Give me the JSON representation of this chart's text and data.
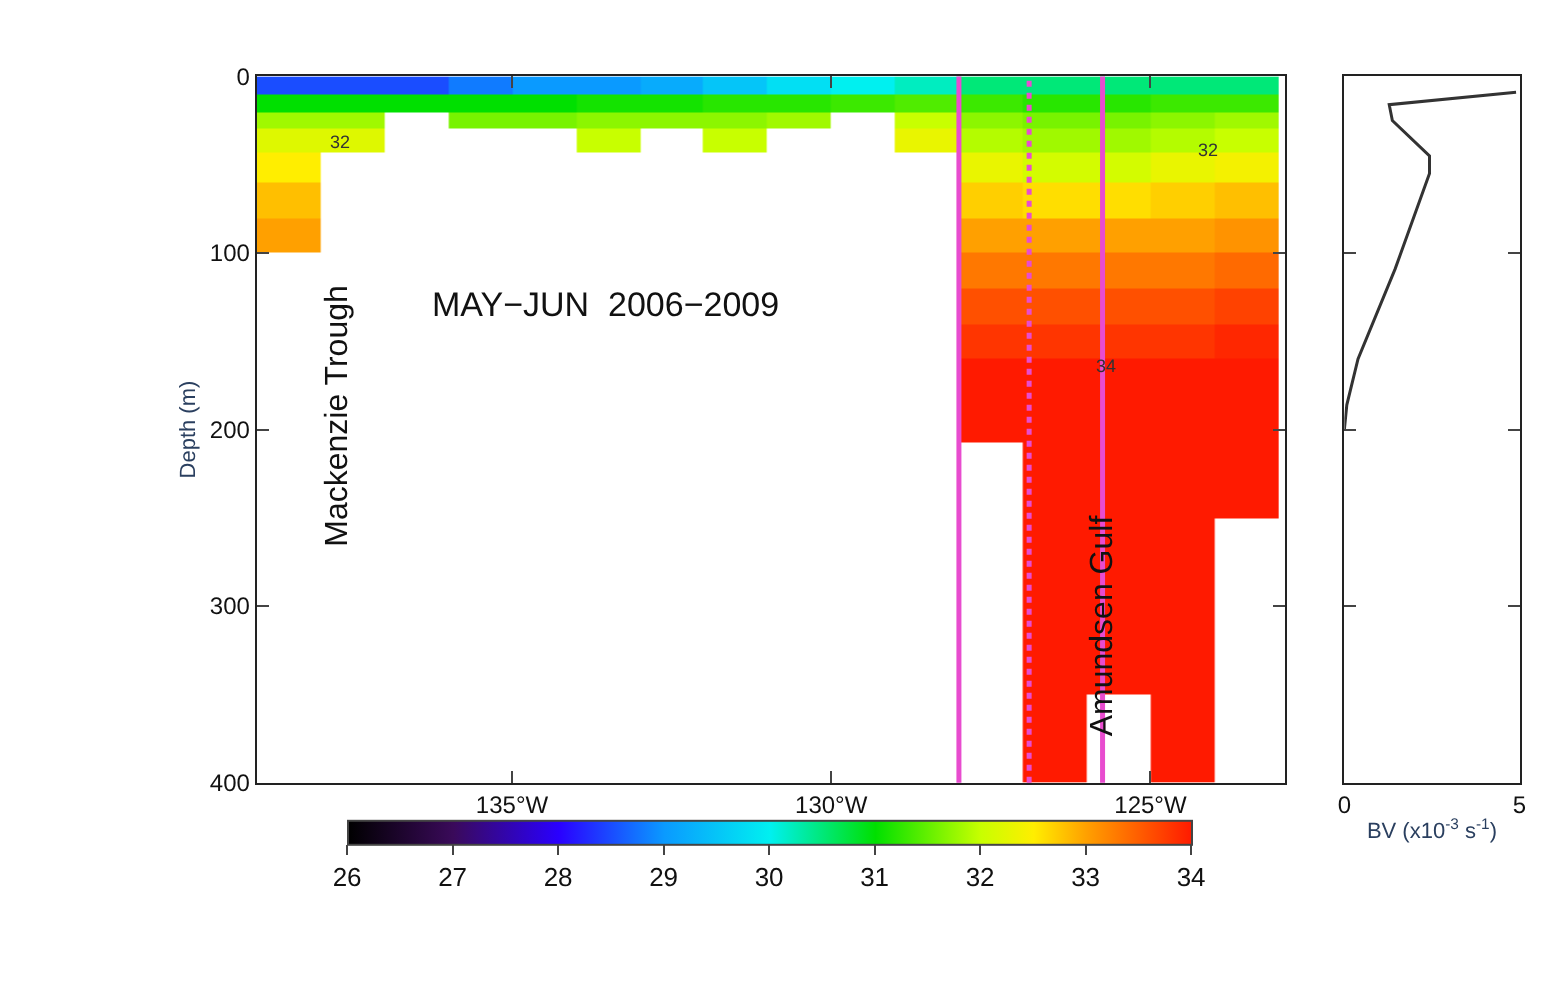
{
  "chart_data": [
    {
      "type": "heatmap",
      "title": "MAY−JUN  2006−2009",
      "ylabel": "Depth (m)",
      "x": [
        -138.5,
        -137.5,
        -136.5,
        -135.5,
        -134.5,
        -133.5,
        -132.5,
        -131.5,
        -130.5,
        -129.5,
        -128.5,
        -127.5,
        -126.5,
        -125.5,
        -124.5,
        -123.5
      ],
      "y": [
        5,
        15,
        25,
        35,
        50,
        70,
        90,
        110,
        130,
        150,
        170,
        190,
        225,
        275,
        325,
        375
      ],
      "cells": [
        [
          28.5,
          28.5,
          28.5,
          28.8,
          29,
          29,
          29.2,
          29.5,
          29.8,
          30,
          30.2,
          30.5,
          30.5,
          30.5,
          30.5,
          30.5
        ],
        [
          31,
          31,
          31,
          31,
          31,
          31.1,
          31.1,
          31.2,
          31.2,
          31.3,
          31.4,
          31.3,
          31.2,
          31.2,
          31.3,
          31.3
        ],
        [
          31.8,
          31.8,
          null,
          31.6,
          31.6,
          31.7,
          31.7,
          31.7,
          31.8,
          null,
          32,
          31.7,
          31.6,
          31.6,
          31.7,
          31.8
        ],
        [
          32.2,
          32.2,
          null,
          null,
          null,
          32,
          null,
          32,
          null,
          null,
          32.3,
          31.9,
          31.8,
          31.8,
          31.9,
          32
        ],
        [
          32.5,
          null,
          null,
          null,
          null,
          null,
          null,
          null,
          null,
          null,
          null,
          32.3,
          32.1,
          32.1,
          32.3,
          32.4
        ],
        [
          32.8,
          null,
          null,
          null,
          null,
          null,
          null,
          null,
          null,
          null,
          null,
          32.7,
          32.6,
          32.6,
          32.7,
          32.8
        ],
        [
          33,
          null,
          null,
          null,
          null,
          null,
          null,
          null,
          null,
          null,
          null,
          33,
          33,
          33,
          33,
          33.1
        ],
        [
          null,
          null,
          null,
          null,
          null,
          null,
          null,
          null,
          null,
          null,
          null,
          33.3,
          33.3,
          33.3,
          33.3,
          33.4
        ],
        [
          null,
          null,
          null,
          null,
          null,
          null,
          null,
          null,
          null,
          null,
          null,
          33.6,
          33.6,
          33.6,
          33.6,
          33.7
        ],
        [
          null,
          null,
          null,
          null,
          null,
          null,
          null,
          null,
          null,
          null,
          null,
          33.8,
          33.8,
          33.8,
          33.8,
          33.9
        ],
        [
          null,
          null,
          null,
          null,
          null,
          null,
          null,
          null,
          null,
          null,
          null,
          34,
          34,
          34,
          34,
          34
        ],
        [
          null,
          null,
          null,
          null,
          null,
          null,
          null,
          null,
          null,
          null,
          null,
          34,
          34,
          34,
          34,
          34
        ],
        [
          null,
          null,
          null,
          null,
          null,
          null,
          null,
          null,
          null,
          null,
          null,
          null,
          34,
          34,
          34,
          34
        ],
        [
          null,
          null,
          null,
          null,
          null,
          null,
          null,
          null,
          null,
          null,
          null,
          null,
          34,
          34,
          34,
          null
        ],
        [
          null,
          null,
          null,
          null,
          null,
          null,
          null,
          null,
          null,
          null,
          null,
          null,
          34,
          34,
          34,
          null
        ],
        [
          null,
          null,
          null,
          null,
          null,
          null,
          null,
          null,
          null,
          null,
          null,
          null,
          34,
          null,
          34,
          null
        ]
      ],
      "clim": [
        26,
        34
      ],
      "cticks": [
        26,
        27,
        28,
        29,
        30,
        31,
        32,
        33,
        34
      ],
      "xlim": [
        -139,
        -122.9
      ],
      "xticks": [
        {
          "value": -135,
          "label": "135°W"
        },
        {
          "value": -130,
          "label": "130°W"
        },
        {
          "value": -125,
          "label": "125°W"
        }
      ],
      "ylim": [
        400,
        0
      ],
      "yticks": [
        0,
        100,
        200,
        300,
        400
      ],
      "ref_lines": [
        {
          "axis": "x",
          "value": -128.0,
          "color": "#e84ccf",
          "line_style": "solid"
        },
        {
          "axis": "x",
          "value": -126.9,
          "color": "#e84ccf",
          "line_style": "dotted"
        },
        {
          "axis": "x",
          "value": -125.75,
          "color": "#e84ccf",
          "line_style": "solid"
        }
      ],
      "annotations": [
        "Mackenzie Trough",
        "Amundsen Gulf",
        "32",
        "32",
        "34"
      ]
    },
    {
      "type": "line",
      "xlabel": "BV (x10$^{-3}$ s$^{-1}$)",
      "series": [
        {
          "color": "#333333",
          "x": [
            4.9,
            1.28,
            1.37,
            2.43,
            2.43,
            1.45,
            0.39,
            0.07,
            0
          ],
          "values": [
            9,
            16,
            25,
            45,
            55,
            109,
            160,
            186,
            200
          ]
        }
      ],
      "xlim": [
        0,
        5
      ],
      "xticks": [
        0,
        5
      ],
      "ylim": [
        400,
        0
      ],
      "yticks": [
        0,
        100,
        200,
        300,
        400
      ],
      "tick_labels": "x"
    }
  ]
}
